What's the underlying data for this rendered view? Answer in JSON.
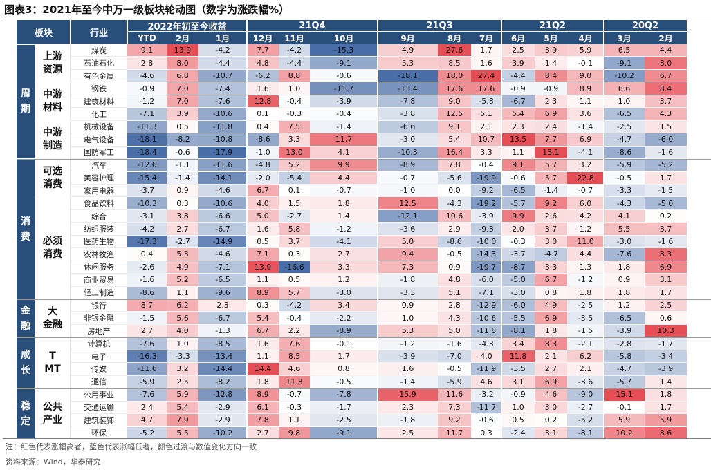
{
  "title": "图表3：2021年至今中万一级板块轮动图（数字为涨跌幅%）",
  "header": {
    "sector": "板块",
    "industry": "行业",
    "groups": [
      "2022年初至今收益",
      "21Q4",
      "21Q3",
      "21Q2",
      "20Q2"
    ],
    "columns": [
      "YTD",
      "2月",
      "1月",
      "12月",
      "11月",
      "10月",
      "9月",
      "8月",
      "7月",
      "6月",
      "5月",
      "4月",
      "3月",
      "2月"
    ]
  },
  "level1": [
    "周期",
    "消费",
    "金融",
    "成长",
    "稳定"
  ],
  "level2": [
    "上游资源",
    "中游材料",
    "中游制造",
    "可选消费",
    "必须消费",
    "大金融",
    "TMT",
    "公共产业"
  ],
  "rows": [
    {
      "name": "煤炭",
      "values": [
        "9.1",
        "13.9",
        "-4.2",
        "7.7",
        "-4.2",
        "-15.3",
        "4.9",
        "27.6",
        "1.7",
        "2.5",
        "3.9",
        "5.9",
        "6.5",
        "4.4"
      ]
    },
    {
      "name": "石油石化",
      "values": [
        "2.8",
        "8.0",
        "-4.4",
        "4.8",
        "-4.4",
        "-9.1",
        "5.3",
        "8.5",
        "1.6",
        "3.9",
        "1.4",
        "-0.1",
        "-9.1",
        "8.0"
      ]
    },
    {
      "name": "有色金属",
      "values": [
        "-4.6",
        "6.8",
        "-10.7",
        "-6.2",
        "8.8",
        "-0.6",
        "-18.1",
        "18.0",
        "27.4",
        "-4.4",
        "8.4",
        "9.0",
        "-10.2",
        "6.7"
      ]
    },
    {
      "name": "钢铁",
      "values": [
        "-0.9",
        "7.0",
        "-7.4",
        "1.6",
        "1.0",
        "-11.7",
        "-13.4",
        "17.6",
        "17.6",
        "-0.9",
        "-0.9",
        "8.9",
        "6.6",
        "8.4"
      ]
    },
    {
      "name": "建筑材料",
      "values": [
        "-1.2",
        "7.0",
        "-7.6",
        "12.8",
        "-0.4",
        "-3.9",
        "-7.8",
        "9.0",
        "-5.8",
        "-6.7",
        "2.3",
        "1.1",
        "1.0",
        "3.7"
      ]
    },
    {
      "name": "化工",
      "values": [
        "-7.1",
        "3.9",
        "-10.6",
        "0.1",
        "-0.3",
        "-0.4",
        "-3.8",
        "12.5",
        "5.1",
        "5.4",
        "6.9",
        "3.6",
        "-6.5",
        "4.3"
      ]
    },
    {
      "name": "机械设备",
      "values": [
        "-11.3",
        "0.5",
        "-11.8",
        "0.4",
        "7.5",
        "-1.4",
        "-6.6",
        "9.1",
        "2.1",
        "2.3",
        "2.4",
        "-1.4",
        "-2.5",
        "1.5"
      ]
    },
    {
      "name": "电气设备",
      "values": [
        "-18.1",
        "-8.2",
        "-10.8",
        "-8.6",
        "3.3",
        "11.7",
        "-3.0",
        "5.4",
        "10.7",
        "13.5",
        "7.7",
        "6.9",
        "-4.7",
        "-6.0"
      ]
    },
    {
      "name": "国防军工",
      "values": [
        "-18.4",
        "-0.6",
        "-17.9",
        "-1.0",
        "13.0",
        "4.1",
        "-10.3",
        "16.4",
        "3.3",
        "1.1",
        "13.1",
        "-4.1",
        "-8.6",
        "-1.6"
      ]
    },
    {
      "name": "汽车",
      "values": [
        "-12.6",
        "-1.1",
        "-11.6",
        "-4.8",
        "5.2",
        "9.9",
        "-8.9",
        "7.8",
        "-0.4",
        "9.1",
        "5.7",
        "3.2",
        "-5.9",
        "-5.2"
      ]
    },
    {
      "name": "美容护理",
      "values": [
        "-15.4",
        "-1.4",
        "-14.1",
        "-2.0",
        "-5.4",
        "4.4",
        "-0.7",
        "-5.6",
        "-19.9",
        "-0.6",
        "5.7",
        "22.8",
        "-0.5",
        "1.7"
      ]
    },
    {
      "name": "家用电器",
      "values": [
        "-3.7",
        "0.9",
        "-4.6",
        "6.7",
        "0.1",
        "-0.7",
        "-1.0",
        "0.0",
        "-9.2",
        "-6.5",
        "-1.4",
        "-0.7",
        "-3.3",
        "-1.5"
      ]
    },
    {
      "name": "食品饮料",
      "values": [
        "-10.3",
        "0.3",
        "-10.6",
        "4.0",
        "1.5",
        "1.8",
        "12.5",
        "-4.3",
        "-19.2",
        "-5.7",
        "9.2",
        "6.0",
        "-4.3",
        "-5.0"
      ]
    },
    {
      "name": "综合",
      "values": [
        "-3.1",
        "3.8",
        "-6.6",
        "5.0",
        "-2.7",
        "1.4",
        "-12.1",
        "10.6",
        "-3.9",
        "9.9",
        "2.6",
        "4.2",
        "4.1",
        "0.2"
      ]
    },
    {
      "name": "纺织服装",
      "values": [
        "-4.2",
        "2.7",
        "-6.7",
        "1.6",
        "5.8",
        "-1.2",
        "-3.6",
        "2.9",
        "-9.3",
        "2.0",
        "3.7",
        "1.2",
        "5.5",
        "3.7"
      ]
    },
    {
      "name": "医药生物",
      "values": [
        "-17.3",
        "-2.7",
        "-14.9",
        "0.5",
        "3.7",
        "-4.1",
        "5.0",
        "-8.6",
        "-10.0",
        "-0.3",
        "3.0",
        "11.0",
        "-3.0",
        "-1.6"
      ]
    },
    {
      "name": "农林牧渔",
      "values": [
        "0.4",
        "5.3",
        "-4.6",
        "7.1",
        "0.3",
        "2.7",
        "9.4",
        "-0.5",
        "-14.3",
        "-3.7",
        "-4.7",
        "4.4",
        "-7.6",
        "8.3"
      ]
    },
    {
      "name": "休闲服务",
      "values": [
        "-2.6",
        "4.9",
        "-7.1",
        "13.9",
        "-16.6",
        "3.3",
        "7.3",
        "0.9",
        "-19.7",
        "-8.7",
        "3.3",
        "1.3",
        "1.8",
        "6.9"
      ]
    },
    {
      "name": "商业贸易",
      "values": [
        "-1.6",
        "5.2",
        "-6.5",
        "1.1",
        "0.5",
        "1.2",
        "-1.8",
        "4.8",
        "-6.0",
        "-5.0",
        "6.7",
        "-1.2",
        "0.9",
        "3.1"
      ]
    },
    {
      "name": "轻工制造",
      "values": [
        "-8.6",
        "1.1",
        "-9.6",
        "8.9",
        "5.7",
        "-3.0",
        "-3.3",
        "5.1",
        "-7.1",
        "-3.0",
        "0.8",
        "1.8",
        "1.8",
        "1.7"
      ]
    },
    {
      "name": "银行",
      "values": [
        "8.7",
        "6.2",
        "2.3",
        "0.3",
        "-4.2",
        "3.4",
        "0.9",
        "2.8",
        "-12.9",
        "-6.0",
        "4.9",
        "-2.5",
        "1.2",
        "2.5"
      ]
    },
    {
      "name": "非银金融",
      "values": [
        "-1.5",
        "5.6",
        "-6.7",
        "5.4",
        "-0.4",
        "-2.2",
        "1.0",
        "4.3",
        "-10.6",
        "-5.5",
        "6.9",
        "-3.5",
        "-6.5",
        "0.6"
      ]
    },
    {
      "name": "房地产",
      "values": [
        "2.7",
        "4.0",
        "-1.3",
        "6.7",
        "2.2",
        "-8.9",
        "5.3",
        "5.0",
        "-11.8",
        "-8.1",
        "1.8",
        "-1.5",
        "-3.9",
        "10.3"
      ]
    },
    {
      "name": "计算机",
      "values": [
        "-7.6",
        "1.0",
        "-8.5",
        "1.6",
        "7.6",
        "-0.1",
        "-1.2",
        "-1.6",
        "-4.3",
        "3.4",
        "8.3",
        "-2.1",
        "-2.8",
        "-1.7"
      ]
    },
    {
      "name": "电子",
      "values": [
        "-16.3",
        "-3.3",
        "-13.4",
        "1.1",
        "8.5",
        "1.7",
        "-3.9",
        "-7.0",
        "4.0",
        "11.8",
        "2.1",
        "6.2",
        "-5.8",
        "-3.4"
      ]
    },
    {
      "name": "传媒",
      "values": [
        "-11.6",
        "3.2",
        "-14.4",
        "14.4",
        "4.6",
        "0.8",
        "1.6",
        "-0.5",
        "-11.9",
        "-3.5",
        "2.7",
        "2.1",
        "-4.7",
        "-3.9"
      ]
    },
    {
      "name": "通信",
      "values": [
        "-5.9",
        "2.5",
        "-8.2",
        "1.8",
        "11.3",
        "-0.5",
        "-1.4",
        "-5.9",
        "4.6",
        "3.1",
        "6.9",
        "-3.6",
        "-5.7",
        "1.4"
      ]
    },
    {
      "name": "公用事业",
      "values": [
        "-7.6",
        "5.9",
        "-12.8",
        "8.9",
        "-0.7",
        "-7.8",
        "15.9",
        "11.6",
        "-3.2",
        "-0.9",
        "4.6",
        "-9.0",
        "15.1",
        "1.8"
      ]
    },
    {
      "name": "交通运输",
      "values": [
        "2.4",
        "5.4",
        "-2.9",
        "6.1",
        "-0.3",
        "-1.7",
        "2.3",
        "7.3",
        "-11.7",
        "1.0",
        "3.0",
        "-2.7",
        "-0.1",
        "1.7"
      ]
    },
    {
      "name": "建筑装饰",
      "values": [
        "4.7",
        "7.9",
        "-2.9",
        "7.8",
        "1.1",
        "-2.5",
        "-1.8",
        "9.2",
        "-0.6",
        "0.5",
        "0.2",
        "-5.2",
        "5.9",
        "5.9"
      ]
    },
    {
      "name": "环保",
      "values": [
        "-5.2",
        "5.5",
        "-10.2",
        "2.7",
        "9.8",
        "-9.1",
        "2.5",
        "11.7",
        "0.3",
        "-2.4",
        "3.1",
        "-8.1",
        "10.2",
        "8.6"
      ]
    }
  ],
  "notes": [
    "注：红色代表涨幅高者，蓝色代表涨幅低者，颜色过渡与数值变化方向一致",
    "资料来源：Wind，华泰研究"
  ],
  "colors": {
    "header": "#2a4e7a",
    "up": "#e64e55",
    "down": "#4a6ea8",
    "rule": "#7f7f7f"
  }
}
